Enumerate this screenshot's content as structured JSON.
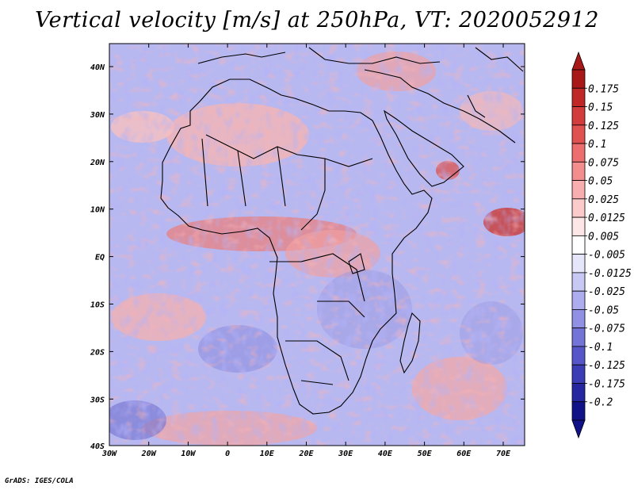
{
  "title": "Vertical velocity [m/s] at 250hPa, VT: 2020052912",
  "credit": "GrADS: IGES/COLA",
  "axes": {
    "lon_labels": [
      "30W",
      "20W",
      "10W",
      "0",
      "10E",
      "20E",
      "30E",
      "40E",
      "50E",
      "60E",
      "70E"
    ],
    "lat_labels": [
      "40N",
      "30N",
      "20N",
      "10N",
      "EQ",
      "10S",
      "20S",
      "30S",
      "40S"
    ]
  },
  "colorbar": {
    "labels": [
      "0.175",
      "0.15",
      "0.125",
      "0.1",
      "0.075",
      "0.05",
      "0.025",
      "0.0125",
      "0.005",
      "-0.005",
      "-0.0125",
      "-0.025",
      "-0.05",
      "-0.075",
      "-0.1",
      "-0.125",
      "-0.175",
      "-0.2"
    ],
    "colors": [
      "#a81818",
      "#c02828",
      "#d23c3c",
      "#e05252",
      "#ec6e6e",
      "#f48e8e",
      "#f8aeae",
      "#fbcaca",
      "#fde6e6",
      "#ffffff",
      "#e6e6fb",
      "#c8c8f4",
      "#acacee",
      "#9090e4",
      "#7474d8",
      "#5656c8",
      "#3c3cb4",
      "#2626a0",
      "#121288"
    ],
    "max_color": "#a81818",
    "min_color": "#121288"
  }
}
